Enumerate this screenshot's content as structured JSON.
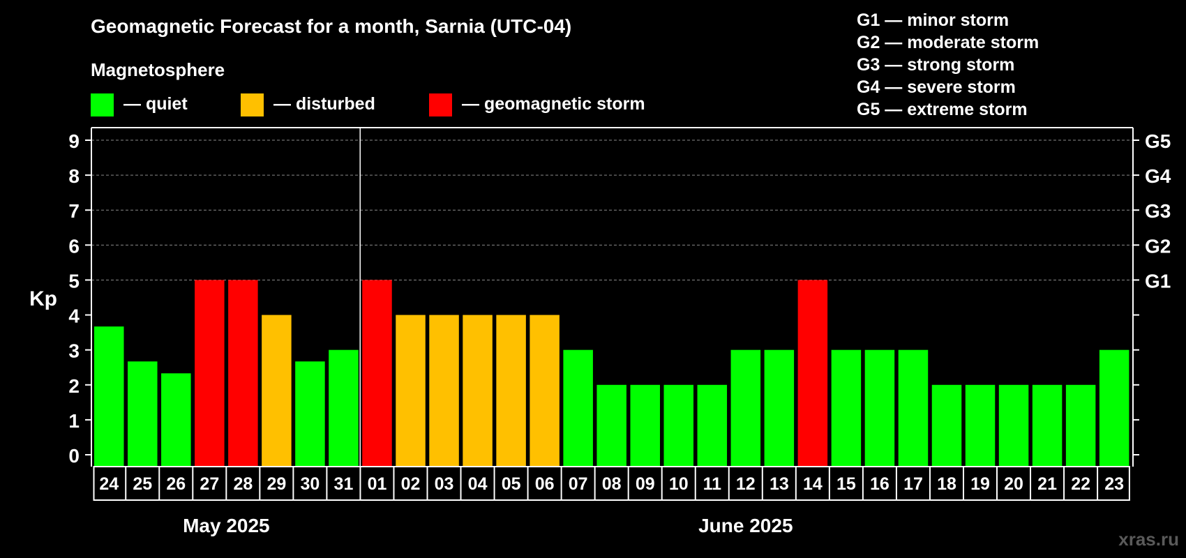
{
  "chart_data": {
    "type": "bar",
    "title": "Geomagnetic Forecast for a month, Sarnia (UTC-04)",
    "ylabel": "Kp",
    "ylim": [
      0,
      9
    ],
    "yticks": [
      "0",
      "1",
      "2",
      "3",
      "4",
      "5",
      "6",
      "7",
      "8",
      "9"
    ],
    "right_axis_labels": [
      {
        "value": 5,
        "label": "G1"
      },
      {
        "value": 6,
        "label": "G2"
      },
      {
        "value": 7,
        "label": "G3"
      },
      {
        "value": 8,
        "label": "G4"
      },
      {
        "value": 9,
        "label": "G5"
      }
    ],
    "legend_title": "Magnetosphere",
    "legend": [
      {
        "label": "— quiet",
        "color": "#00ff00"
      },
      {
        "label": "— disturbed",
        "color": "#ffc000"
      },
      {
        "label": "— geomagnetic storm",
        "color": "#ff0000"
      }
    ],
    "storm_scale": [
      "G1 — minor storm",
      "G2 — moderate storm",
      "G3 — strong storm",
      "G4 — severe storm",
      "G5 — extreme storm"
    ],
    "months": [
      {
        "label": "May 2025",
        "start_index": 0,
        "count": 8
      },
      {
        "label": "June 2025",
        "start_index": 8,
        "count": 23
      }
    ],
    "categories": [
      "24",
      "25",
      "26",
      "27",
      "28",
      "29",
      "30",
      "31",
      "01",
      "02",
      "03",
      "04",
      "05",
      "06",
      "07",
      "08",
      "09",
      "10",
      "11",
      "12",
      "13",
      "14",
      "15",
      "16",
      "17",
      "18",
      "19",
      "20",
      "21",
      "22",
      "23"
    ],
    "values": [
      3.67,
      2.67,
      2.33,
      5,
      5,
      4,
      2.67,
      3,
      5,
      4,
      4,
      4,
      4,
      4,
      3,
      2,
      2,
      2,
      2,
      3,
      3,
      5,
      3,
      3,
      3,
      2,
      2,
      2,
      2,
      2,
      3
    ],
    "colors": {
      "quiet": "#00ff00",
      "disturbed": "#ffc000",
      "storm": "#ff0000"
    }
  },
  "watermark": "xras.ru"
}
